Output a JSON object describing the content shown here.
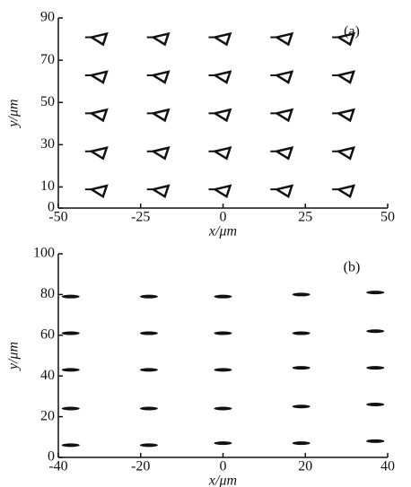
{
  "chart_data": [
    {
      "type": "scatter",
      "annotation": "(a)",
      "x_label": "x/μm",
      "y_label": "y/μm",
      "marker": "triangle",
      "xlim": [
        -50,
        50
      ],
      "xticks": [
        -50,
        -25,
        0,
        25,
        50
      ],
      "ylim": [
        0,
        90
      ],
      "yticks": [
        0,
        10,
        30,
        50,
        70,
        90
      ],
      "series": [
        {
          "color": "#111111",
          "x": [
            -37.5,
            -18.75,
            0,
            18.75,
            37.5,
            -37.5,
            -18.75,
            0,
            18.75,
            37.5,
            -37.5,
            -18.75,
            0,
            18.75,
            37.5,
            -37.5,
            -18.75,
            0,
            18.75,
            37.5,
            -37.5,
            -18.75,
            0,
            18.75,
            37.5
          ],
          "values": [
            80,
            80,
            80,
            80,
            80,
            62,
            62,
            62,
            62,
            62,
            44,
            44,
            44,
            44,
            44,
            26,
            26,
            26,
            26,
            26,
            8,
            8,
            8,
            8,
            8
          ]
        }
      ]
    },
    {
      "type": "scatter",
      "annotation": "(b)",
      "x_label": "x/μm",
      "y_label": "y/μm",
      "marker": "dash",
      "xlim": [
        -40,
        40
      ],
      "xticks": [
        -40,
        -20,
        0,
        20,
        40
      ],
      "ylim": [
        0,
        100
      ],
      "yticks": [
        0,
        20,
        40,
        60,
        80,
        100
      ],
      "series": [
        {
          "color": "#111111",
          "x": [
            -37,
            -18,
            0,
            19,
            37,
            -37,
            -18,
            0,
            19,
            37,
            -37,
            -18,
            0,
            19,
            37,
            -37,
            -18,
            0,
            19,
            37,
            -37,
            -18,
            0,
            19,
            37
          ],
          "values": [
            79,
            79,
            79,
            80,
            81,
            61,
            61,
            61,
            61,
            62,
            43,
            43,
            43,
            44,
            44,
            24,
            24,
            24,
            25,
            26,
            6,
            6,
            7,
            7,
            8
          ]
        }
      ]
    }
  ]
}
